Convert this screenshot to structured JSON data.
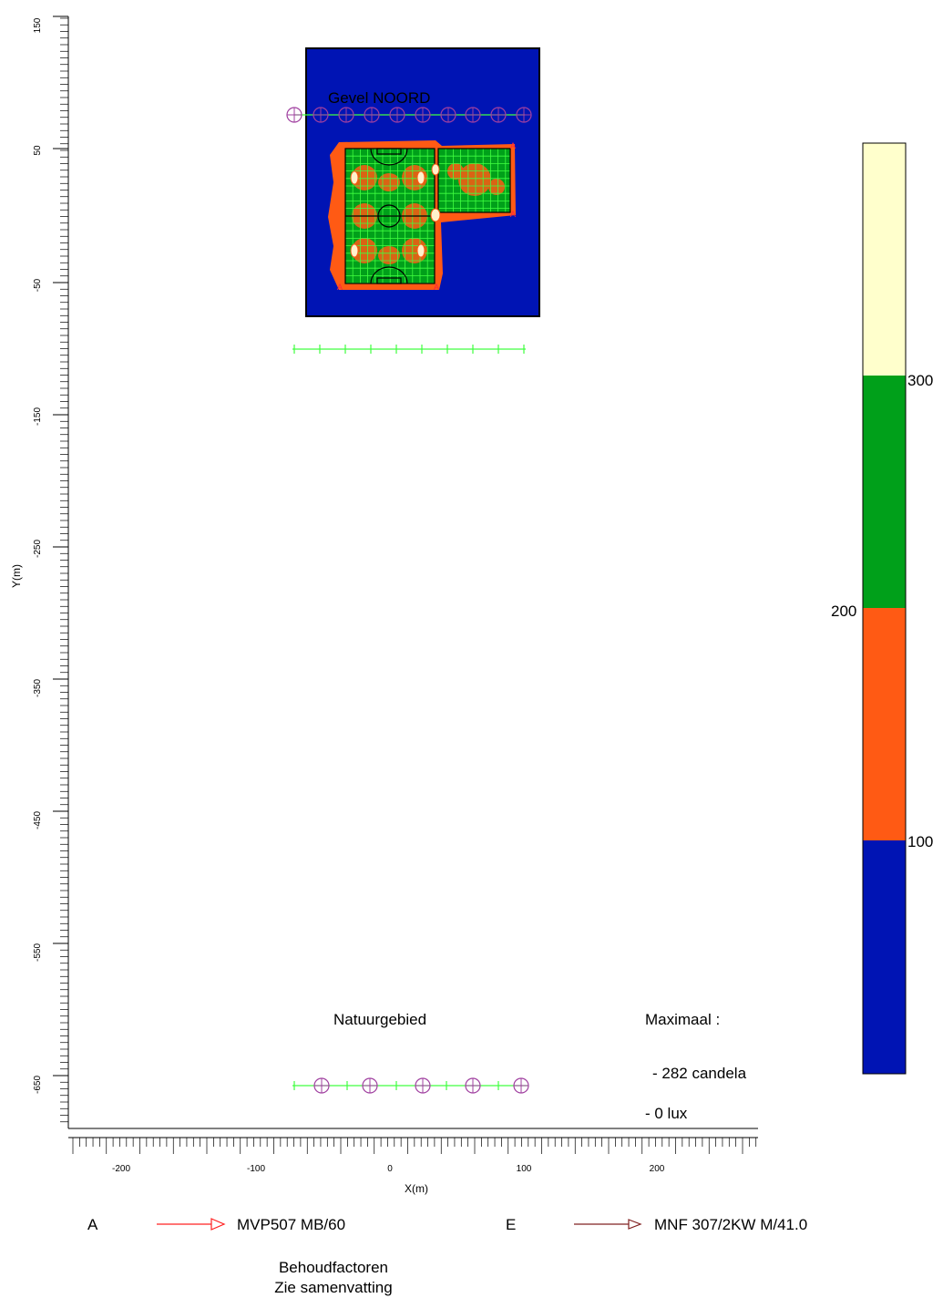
{
  "plot": {
    "x_axis_label": "X(m)",
    "y_axis_label": "Y(m)",
    "x_ticks": [
      "-200",
      "-100",
      "0",
      "100",
      "200"
    ],
    "y_ticks": [
      "150",
      "50",
      "-50",
      "-150",
      "-250",
      "-350",
      "-450",
      "-550",
      "-650"
    ]
  },
  "site": {
    "facade_label": "Gevel NOORD",
    "nature_label": "Natuurgebied",
    "luminaire_marker": "A"
  },
  "maximum": {
    "title": "Maximaal :",
    "candela": "- 282 candela",
    "lux": "- 0 lux"
  },
  "color_scale": {
    "labels": [
      "300",
      "200",
      "100"
    ],
    "bands": [
      {
        "color": "#ffffcc"
      },
      {
        "color": "#00a01a"
      },
      {
        "color": "#ff5a14"
      },
      {
        "color": "#0014b4"
      }
    ]
  },
  "legend": {
    "items": [
      {
        "code": "A",
        "name": "MVP507 MB/60",
        "arrow_color": "#ff2020"
      },
      {
        "code": "E",
        "name": "MNF 307/2KW M/41.0",
        "arrow_color": "#802020"
      }
    ],
    "note_line1": "Behoudfactoren",
    "note_line2": "Zie samenvatting"
  },
  "colors": {
    "background_area": "#0014b4",
    "field": "#00a01a",
    "halo": "#ff5a14",
    "grid_line": "#40ff40",
    "observer": "#a040a0"
  }
}
